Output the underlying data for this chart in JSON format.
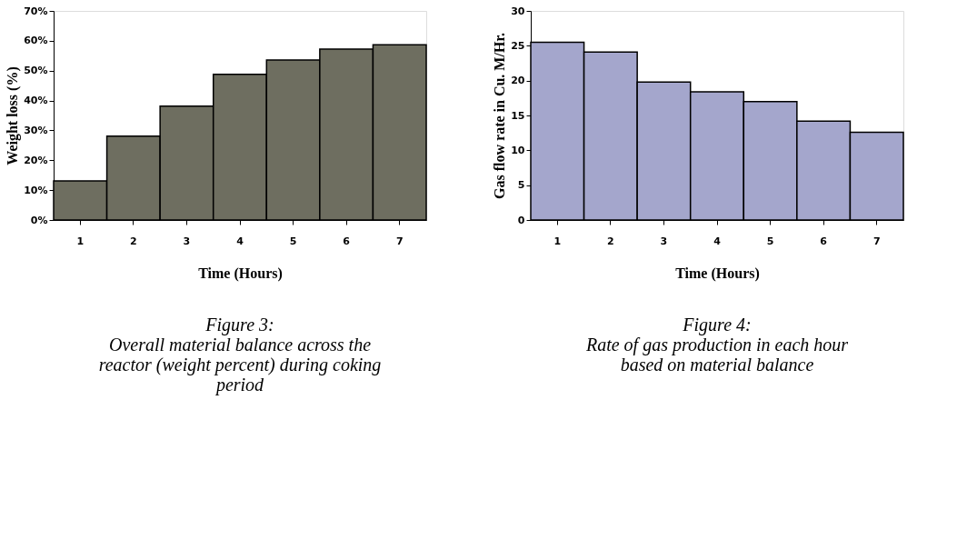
{
  "chart_data": [
    {
      "type": "bar",
      "categories": [
        "1",
        "2",
        "3",
        "4",
        "5",
        "6",
        "7"
      ],
      "values": [
        13.1,
        28.1,
        38.1,
        48.8,
        53.6,
        57.2,
        58.7
      ],
      "color": "#6e6e60",
      "xlabel": "Time (Hours)",
      "ylabel": "Weight loss (%)",
      "ylim": [
        0,
        70
      ],
      "yticks": [
        {
          "value": 0,
          "label": "0%"
        },
        {
          "value": 10,
          "label": "10%"
        },
        {
          "value": 20,
          "label": "20%"
        },
        {
          "value": 30,
          "label": "30%"
        },
        {
          "value": 40,
          "label": "40%"
        },
        {
          "value": 50,
          "label": "50%"
        },
        {
          "value": 60,
          "label": "60%"
        },
        {
          "value": 70,
          "label": "70%"
        }
      ],
      "grid": false,
      "annotations": [
        "Figure 3:",
        "Overall material balance across the reactor (weight percent) during coking period"
      ]
    },
    {
      "type": "bar",
      "categories": [
        "1",
        "2",
        "3",
        "4",
        "5",
        "6",
        "7"
      ],
      "values": [
        25.5,
        24.1,
        19.8,
        18.4,
        17.0,
        14.2,
        12.6
      ],
      "color": "#a4a6cc",
      "xlabel": "Time (Hours)",
      "ylabel": "Gas flow rate in Cu. M/Hr.",
      "ylim": [
        0,
        30
      ],
      "yticks": [
        0,
        5,
        10,
        15,
        20,
        25,
        30
      ],
      "grid": false,
      "annotations": [
        "Figure 4:",
        "Rate of gas production in each hour based on material balance"
      ]
    }
  ]
}
